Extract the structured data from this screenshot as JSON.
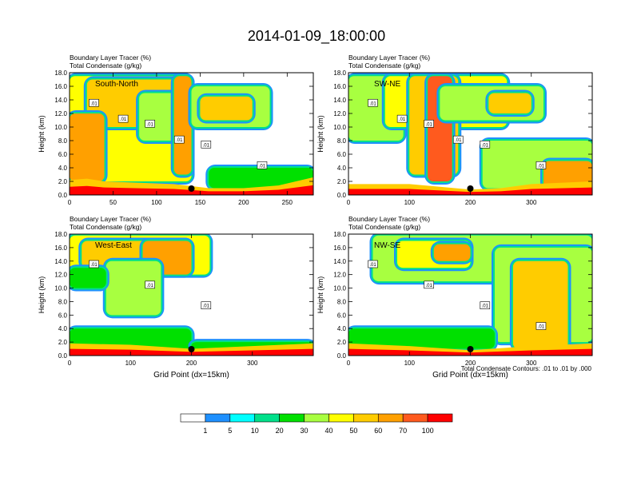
{
  "chart_data": {
    "type": "heatmap",
    "title": "2014-01-09_18:00:00",
    "legend": {
      "colors": [
        "#ffffff",
        "#1e90ff",
        "#00ffff",
        "#00e08a",
        "#00e000",
        "#a8ff40",
        "#ffff00",
        "#ffcc00",
        "#ffa000",
        "#ff5a1e",
        "#ff0000"
      ],
      "labels": [
        "1",
        "5",
        "10",
        "20",
        "30",
        "40",
        "50",
        "60",
        "70",
        "100"
      ]
    },
    "panels": [
      {
        "name": "South-North",
        "label": "South-North",
        "title_lines": [
          "Boundary Layer Tracer   (%)",
          "Total Condensate   (g/kg)"
        ],
        "ylabel": "Height (km)",
        "xlabel": "",
        "xlim": [
          0,
          280
        ],
        "ylim": [
          0,
          18
        ],
        "xticks": [
          0,
          50,
          100,
          150,
          200,
          250
        ],
        "yticks": [
          0,
          2,
          4,
          6,
          8,
          10,
          12,
          14,
          16,
          18
        ],
        "ytick_labels": [
          "0.0",
          "2.0",
          "4.0",
          "6.0",
          "8.0",
          "10.0",
          "12.0",
          "14.0",
          "16.0",
          "18.0"
        ],
        "marker_x": 140,
        "contour_labels": [
          ".01",
          ".01",
          ".01",
          ".01",
          ".01",
          ".01"
        ],
        "surface": [
          [
            0,
            2.2
          ],
          [
            20,
            2.4
          ],
          [
            40,
            2.0
          ],
          [
            80,
            1.8
          ],
          [
            120,
            1.6
          ],
          [
            160,
            1.0
          ],
          [
            200,
            1.0
          ],
          [
            240,
            1.4
          ],
          [
            280,
            2.6
          ]
        ],
        "clouds": [
          {
            "x": [
              0,
              140
            ],
            "y": [
              2,
              17.5
            ],
            "value": 40
          },
          {
            "x": [
              20,
              130
            ],
            "y": [
              10,
              17
            ],
            "value": 50
          },
          {
            "x": [
              0,
              40
            ],
            "y": [
              2,
              12
            ],
            "value": 60
          },
          {
            "x": [
              80,
              130
            ],
            "y": [
              8,
              15
            ],
            "value": 30
          },
          {
            "x": [
              120,
              140
            ],
            "y": [
              3,
              17.5
            ],
            "value": 60
          },
          {
            "x": [
              140,
              230
            ],
            "y": [
              10,
              16
            ],
            "value": 30
          },
          {
            "x": [
              150,
              210
            ],
            "y": [
              11,
              14.5
            ],
            "value": 50
          },
          {
            "x": [
              160,
              280
            ],
            "y": [
              1,
              4
            ],
            "value": 20
          }
        ]
      },
      {
        "name": "SW-NE",
        "label": "SW-NE",
        "title_lines": [
          "Boundary Layer Tracer   (%)",
          "Total Condensate   (g/kg)"
        ],
        "ylabel": "Height (km)",
        "xlabel": "",
        "xlim": [
          0,
          400
        ],
        "ylim": [
          0,
          18
        ],
        "xticks": [
          0,
          100,
          200,
          300
        ],
        "yticks": [
          0,
          2,
          4,
          6,
          8,
          10,
          12,
          14,
          16,
          18
        ],
        "ytick_labels": [
          "0.0",
          "2.0",
          "4.0",
          "6.0",
          "8.0",
          "10.0",
          "12.0",
          "14.0",
          "16.0",
          "18.0"
        ],
        "marker_x": 200,
        "contour_labels": [
          ".01",
          ".01",
          ".01",
          ".01",
          ".01",
          ".01"
        ],
        "surface": [
          [
            0,
            1.6
          ],
          [
            100,
            1.6
          ],
          [
            150,
            1.2
          ],
          [
            200,
            0.8
          ],
          [
            250,
            1.0
          ],
          [
            300,
            1.6
          ],
          [
            400,
            2.0
          ]
        ],
        "clouds": [
          {
            "x": [
              0,
              90
            ],
            "y": [
              8,
              17.5
            ],
            "value": 30
          },
          {
            "x": [
              60,
              260
            ],
            "y": [
              10,
              17.5
            ],
            "value": 40
          },
          {
            "x": [
              100,
              180
            ],
            "y": [
              3,
              17.5
            ],
            "value": 50
          },
          {
            "x": [
              130,
              170
            ],
            "y": [
              2,
              17.5
            ],
            "value": 70
          },
          {
            "x": [
              150,
              320
            ],
            "y": [
              11,
              16
            ],
            "value": 30
          },
          {
            "x": [
              230,
              300
            ],
            "y": [
              12,
              15
            ],
            "value": 50
          },
          {
            "x": [
              220,
              400
            ],
            "y": [
              1,
              8
            ],
            "value": 30
          },
          {
            "x": [
              320,
              400
            ],
            "y": [
              1,
              5
            ],
            "value": 60
          }
        ]
      },
      {
        "name": "West-East",
        "label": "West-East",
        "title_lines": [
          "Boundary Layer Tracer   (%)",
          "Total Condensate   (g/kg)"
        ],
        "ylabel": "Height (km)",
        "xlabel": "Grid Point (dx=15km)",
        "xlim": [
          0,
          400
        ],
        "ylim": [
          0,
          18
        ],
        "xticks": [
          0,
          100,
          200,
          300
        ],
        "yticks": [
          0,
          2,
          4,
          6,
          8,
          10,
          12,
          14,
          16,
          18
        ],
        "ytick_labels": [
          "0.0",
          "2.0",
          "4.0",
          "6.0",
          "8.0",
          "10.0",
          "12.0",
          "14.0",
          "16.0",
          "18.0"
        ],
        "marker_x": 200,
        "contour_labels": [
          ".01",
          ".01",
          ".01"
        ],
        "surface": [
          [
            0,
            1.8
          ],
          [
            100,
            1.6
          ],
          [
            200,
            1.0
          ],
          [
            300,
            1.4
          ],
          [
            400,
            1.8
          ]
        ],
        "clouds": [
          {
            "x": [
              0,
              230
            ],
            "y": [
              12,
              17.8
            ],
            "value": 40
          },
          {
            "x": [
              20,
              200
            ],
            "y": [
              13,
              17
            ],
            "value": 50
          },
          {
            "x": [
              120,
              200
            ],
            "y": [
              12,
              17
            ],
            "value": 60
          },
          {
            "x": [
              60,
              150
            ],
            "y": [
              6,
              14
            ],
            "value": 30
          },
          {
            "x": [
              0,
              60
            ],
            "y": [
              10,
              13
            ],
            "value": 20
          },
          {
            "x": [
              0,
              200
            ],
            "y": [
              1,
              4
            ],
            "value": 20
          },
          {
            "x": [
              200,
              400
            ],
            "y": [
              1,
              2
            ],
            "value": 20
          }
        ]
      },
      {
        "name": "NW-SE",
        "label": "NW-SE",
        "title_lines": [
          "Boundary Layer Tracer   (%)",
          "Total Condensate   (g/kg)"
        ],
        "ylabel": "Height (km)",
        "xlabel": "Grid Point (dx=15km)",
        "xlim": [
          0,
          400
        ],
        "ylim": [
          0,
          18
        ],
        "xticks": [
          0,
          100,
          200,
          300
        ],
        "yticks": [
          0,
          2,
          4,
          6,
          8,
          10,
          12,
          14,
          16,
          18
        ],
        "ytick_labels": [
          "0.0",
          "2.0",
          "4.0",
          "6.0",
          "8.0",
          "10.0",
          "12.0",
          "14.0",
          "16.0",
          "18.0"
        ],
        "marker_x": 200,
        "contour_labels": [
          ".01",
          ".01",
          ".01",
          ".01"
        ],
        "surface": [
          [
            0,
            1.8
          ],
          [
            100,
            1.4
          ],
          [
            200,
            0.8
          ],
          [
            300,
            1.4
          ],
          [
            400,
            1.8
          ]
        ],
        "clouds": [
          {
            "x": [
              40,
              400
            ],
            "y": [
              11,
              17.8
            ],
            "value": 30
          },
          {
            "x": [
              80,
              200
            ],
            "y": [
              13,
              17
            ],
            "value": 40
          },
          {
            "x": [
              140,
              200
            ],
            "y": [
              14,
              16.5
            ],
            "value": 60
          },
          {
            "x": [
              240,
              400
            ],
            "y": [
              2,
              16
            ],
            "value": 30
          },
          {
            "x": [
              270,
              360
            ],
            "y": [
              1,
              14
            ],
            "value": 50
          },
          {
            "x": [
              0,
              240
            ],
            "y": [
              1,
              4
            ],
            "value": 20
          }
        ]
      }
    ],
    "footnote": "Total Condensate Contours: .01 to .01 by .000"
  }
}
